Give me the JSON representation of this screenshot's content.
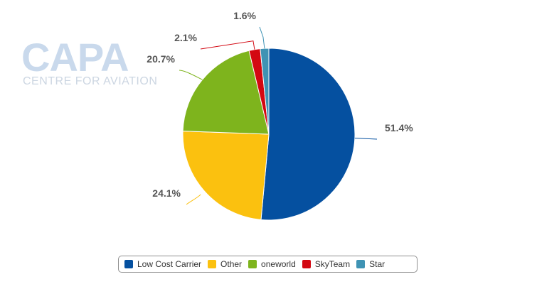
{
  "watermark": {
    "main": "CAPA",
    "sub": "CENTRE FOR AVIATION"
  },
  "chart_data": {
    "type": "pie",
    "title": "",
    "legend_position": "bottom",
    "slices": [
      {
        "name": "Low Cost Carrier",
        "value": 51.4,
        "label": "51.4%",
        "color": "#0550a0"
      },
      {
        "name": "Other",
        "value": 24.1,
        "label": "24.1%",
        "color": "#fbc10f"
      },
      {
        "name": "oneworld",
        "value": 20.7,
        "label": "20.7%",
        "color": "#7eb41d"
      },
      {
        "name": "SkyTeam",
        "value": 2.1,
        "label": "2.1%",
        "color": "#d30812"
      },
      {
        "name": "Star",
        "value": 1.6,
        "label": "1.6%",
        "color": "#3f93b4"
      }
    ]
  }
}
